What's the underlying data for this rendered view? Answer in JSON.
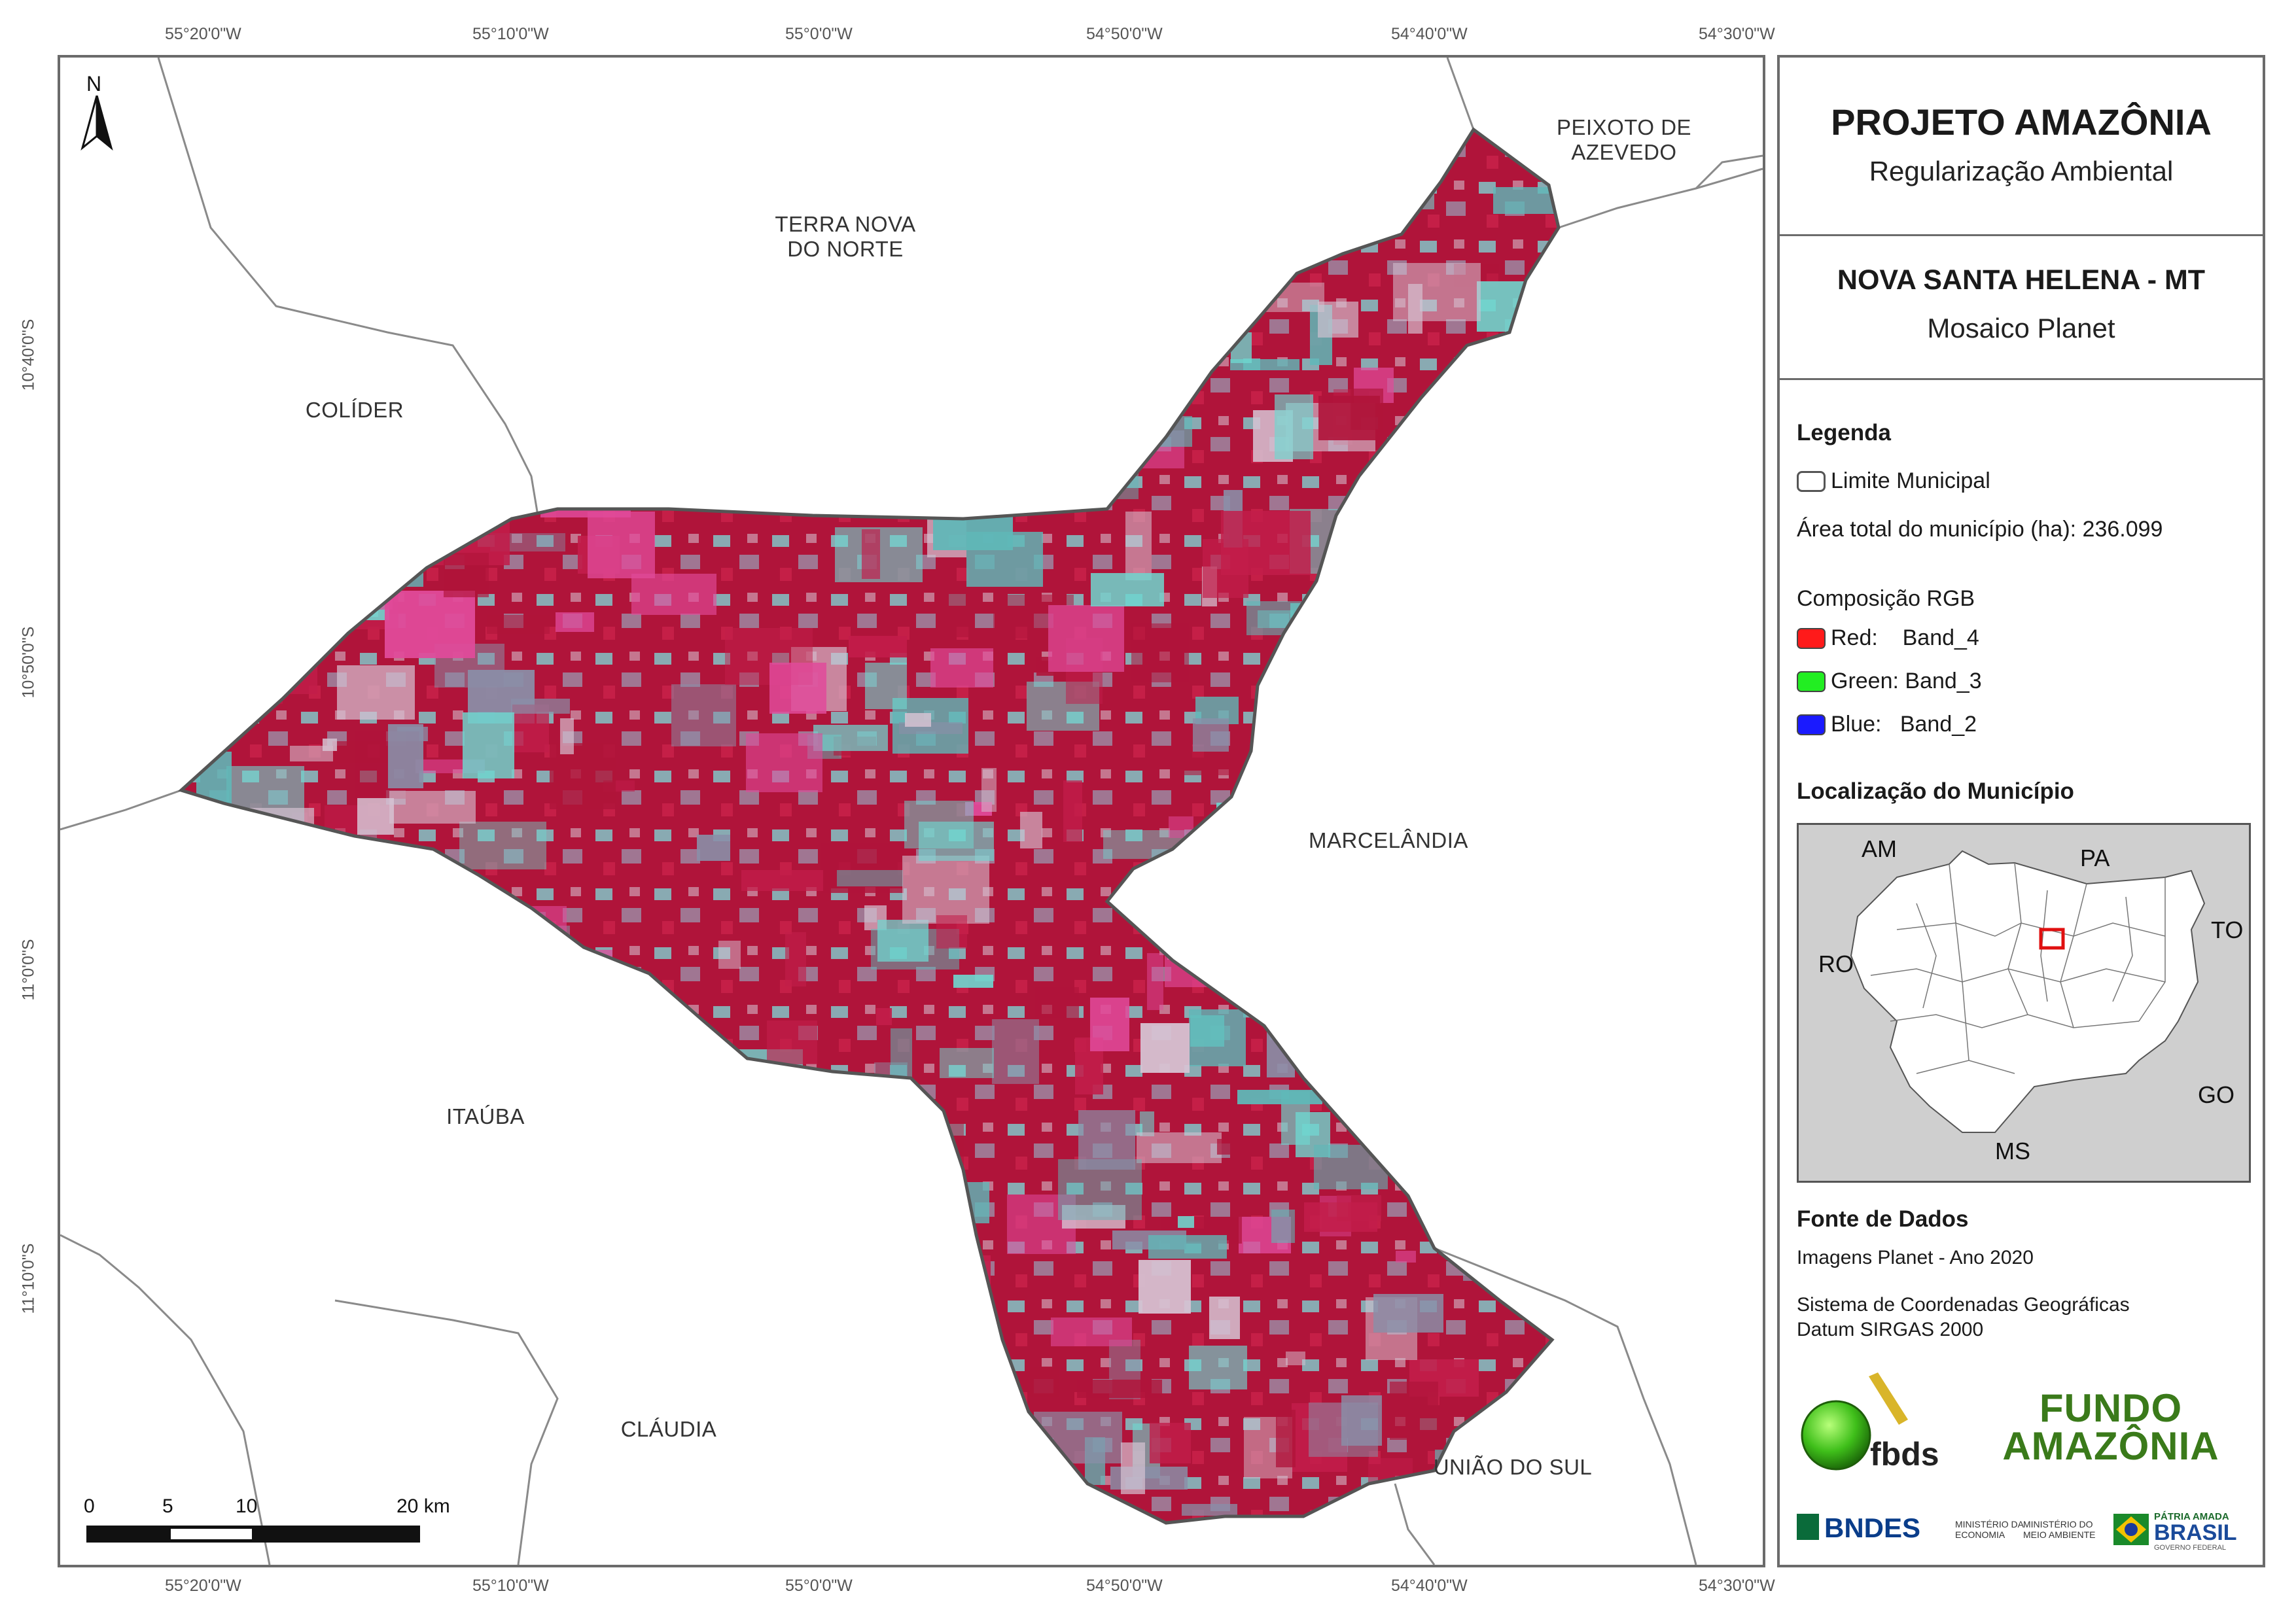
{
  "title": {
    "project": "PROJETO AMAZÔNIA",
    "subtitle": "Regularização Ambiental",
    "municipality": "NOVA SANTA HELENA - MT",
    "map_type": "Mosaico Planet"
  },
  "longitude_ticks": [
    "55°20'0\"W",
    "55°10'0\"W",
    "55°0'0\"W",
    "54°50'0\"W",
    "54°40'0\"W",
    "54°30'0\"W"
  ],
  "latitude_ticks": [
    "10°40'0\"S",
    "10°50'0\"S",
    "11°0'0\"S",
    "11°10'0\"S"
  ],
  "places": {
    "colider": "COLÍDER",
    "terra_nova": "TERRA NOVA\nDO NORTE",
    "peixoto": "PEIXOTO DE\nAZEVEDO",
    "marcelandia": "MARCELÂNDIA",
    "itauba": "ITAÚBA",
    "claudia": "CLÁUDIA",
    "uniao_do_sul": "UNIÃO DO SUL"
  },
  "north_arrow": {
    "label": "N",
    "icon": "north-arrow-icon"
  },
  "scale_bar": {
    "labels": [
      "0",
      "5",
      "10",
      "20 km"
    ]
  },
  "legend": {
    "heading": "Legenda",
    "municipal_limit": "Limite Municipal",
    "area_total": "Área total do município (ha): 236.099",
    "rgb_heading": "Composição RGB",
    "bands": [
      {
        "label": "Red:    Band_4",
        "color": "#ff1a1a"
      },
      {
        "label": "Green: Band_3",
        "color": "#22ee22"
      },
      {
        "label": "Blue:   Band_2",
        "color": "#1a1aff"
      }
    ]
  },
  "location": {
    "heading": "Localização do Município",
    "states": [
      "AM",
      "PA",
      "TO",
      "RO",
      "GO",
      "MS"
    ],
    "highlight_color": "#e01010"
  },
  "sources": {
    "heading": "Fonte de Dados",
    "imagery": "Imagens Planet - Ano 2020",
    "crs": "Sistema de Coordenadas Geográficas\nDatum SIRGAS 2000"
  },
  "logos": {
    "fbds": "fbds",
    "fundo_amazonia": "FUNDO\nAMAZÔNIA",
    "bndes": "BNDES",
    "ministerio_economia": "MINISTÉRIO DA\nECONOMIA",
    "ministerio_ambiente": "MINISTÉRIO DO\nMEIO AMBIENTE",
    "patria_amada": "PÁTRIA AMADA",
    "brasil": "BRASIL",
    "governo_federal": "GOVERNO FEDERAL"
  },
  "colors": {
    "vegetation_red": "#b0143a",
    "cleared_cyan": "#6fd6cf",
    "mixed_gray": "#8a8fa8",
    "frame_gray": "#6b6b6b",
    "fundo_green": "#3a7a1a"
  }
}
